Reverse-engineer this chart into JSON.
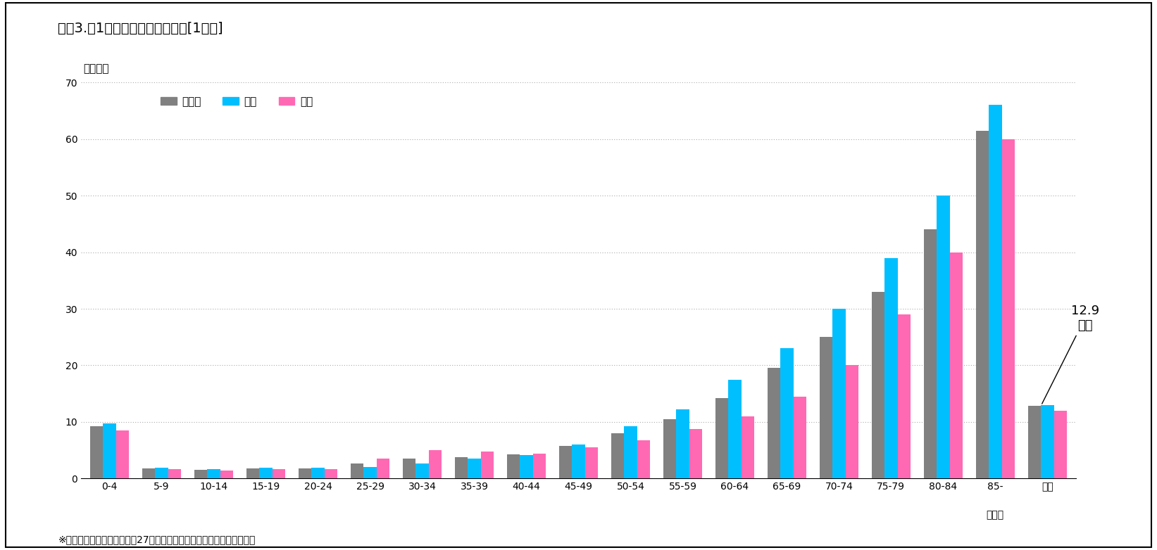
{
  "title": "図表3.　1人当たり入院医療費　[1年間]",
  "ylabel": "（万円）",
  "footnote": "※「国民医療費の概況（平成27年度）」（厚生労働省）より、筆者作成",
  "categories": [
    "0-4",
    "5-9",
    "10-14",
    "15-19",
    "20-24",
    "25-29",
    "30-34",
    "35-39",
    "40-44",
    "45-49",
    "50-54",
    "55-59",
    "60-64",
    "65-69",
    "70-74",
    "75-79",
    "80-84",
    "85-",
    "総計"
  ],
  "age_label": "（歳）",
  "series_names": [
    "男女計",
    "男性",
    "女性"
  ],
  "series": {
    "男女計": {
      "color": "#808080",
      "values": [
        9.2,
        1.8,
        1.5,
        1.8,
        1.8,
        2.7,
        3.5,
        3.8,
        4.3,
        5.8,
        8.0,
        10.5,
        14.2,
        19.5,
        25.0,
        33.0,
        44.0,
        61.5,
        12.9
      ]
    },
    "男性": {
      "color": "#00BFFF",
      "values": [
        9.8,
        1.9,
        1.7,
        1.9,
        1.9,
        2.0,
        2.7,
        3.5,
        4.2,
        6.0,
        9.2,
        12.2,
        17.5,
        23.0,
        30.0,
        39.0,
        50.0,
        66.0,
        13.0
      ]
    },
    "女性": {
      "color": "#FF69B4",
      "values": [
        8.5,
        1.7,
        1.4,
        1.6,
        1.7,
        3.5,
        5.0,
        4.8,
        4.4,
        5.5,
        6.8,
        8.7,
        11.0,
        14.5,
        20.0,
        29.0,
        40.0,
        60.0,
        12.0
      ]
    }
  },
  "ylim": [
    0,
    70
  ],
  "yticks": [
    0,
    10,
    20,
    30,
    40,
    50,
    60,
    70
  ],
  "annotation_text": "12.9\n万円",
  "background_color": "#ffffff",
  "border_color": "#000000",
  "grid_color": "#aaaaaa",
  "bar_width": 0.25,
  "title_fontsize": 14,
  "tick_fontsize": 10,
  "legend_fontsize": 11,
  "footnote_fontsize": 10
}
